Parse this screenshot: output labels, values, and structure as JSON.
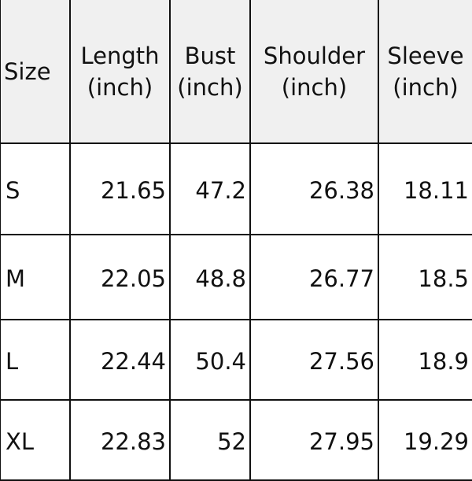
{
  "table": {
    "headers": [
      {
        "line1": "Size",
        "line2": ""
      },
      {
        "line1": "Length",
        "line2": "(inch)"
      },
      {
        "line1": "Bust",
        "line2": "(inch)"
      },
      {
        "line1": "Shoulder",
        "line2": "(inch)"
      },
      {
        "line1": "Sleeve",
        "line2": "(inch)"
      }
    ],
    "rows": [
      [
        "S",
        "21.65",
        "47.2",
        "26.38",
        "18.11"
      ],
      [
        "M",
        "22.05",
        "48.8",
        "26.77",
        "18.5"
      ],
      [
        "L",
        "22.44",
        "50.4",
        "27.56",
        "18.9"
      ],
      [
        "XL",
        "22.83",
        "52",
        "27.95",
        "19.29"
      ]
    ],
    "header_bg": "#f0f0f0"
  }
}
